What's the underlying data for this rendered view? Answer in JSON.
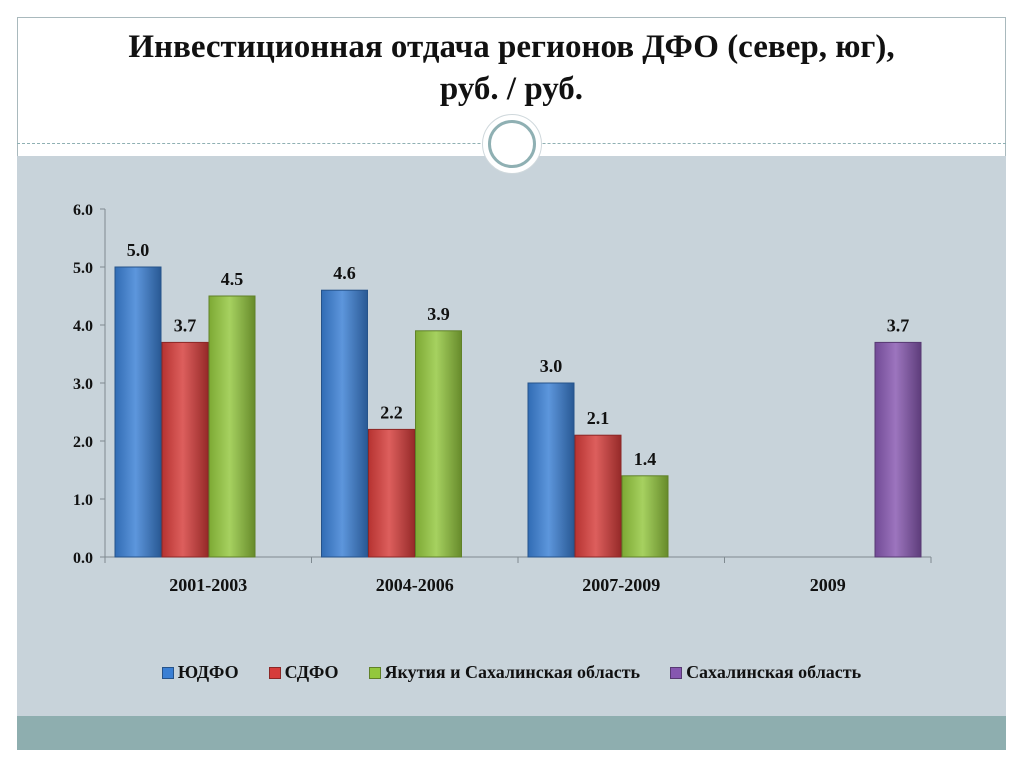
{
  "slide": {
    "title_line1": "Инвестиционная отдача регионов ДФО (север, юг),",
    "title_line2": "руб. / руб."
  },
  "chart_data": {
    "type": "bar",
    "categories": [
      "2001-2003",
      "2004-2006",
      "2007-2009",
      "2009"
    ],
    "series": [
      {
        "name": "ЮДФО",
        "color": "#3a7fd4",
        "values": [
          5.0,
          4.6,
          3.0,
          null
        ],
        "labels": [
          "5.0",
          "4.6",
          "3.0",
          null
        ]
      },
      {
        "name": "СДФО",
        "color": "#d63c3a",
        "values": [
          3.7,
          2.2,
          2.1,
          null
        ],
        "labels": [
          "3.7",
          "2.2",
          "2.1",
          null
        ]
      },
      {
        "name": "Якутия и Сахалинская область",
        "color": "#93c73d",
        "values": [
          4.5,
          3.9,
          1.4,
          null
        ],
        "labels": [
          "4.5",
          "3.9",
          "1.4",
          null
        ]
      },
      {
        "name": "Сахалинская область",
        "color": "#8657b0",
        "values": [
          null,
          null,
          null,
          3.7
        ],
        "labels": [
          null,
          null,
          null,
          "3.7"
        ]
      }
    ],
    "ylim": [
      0,
      6
    ],
    "yticks": [
      "0.0",
      "1.0",
      "2.0",
      "3.0",
      "4.0",
      "5.0",
      "6.0"
    ],
    "grid": false,
    "legend_position": "bottom"
  }
}
